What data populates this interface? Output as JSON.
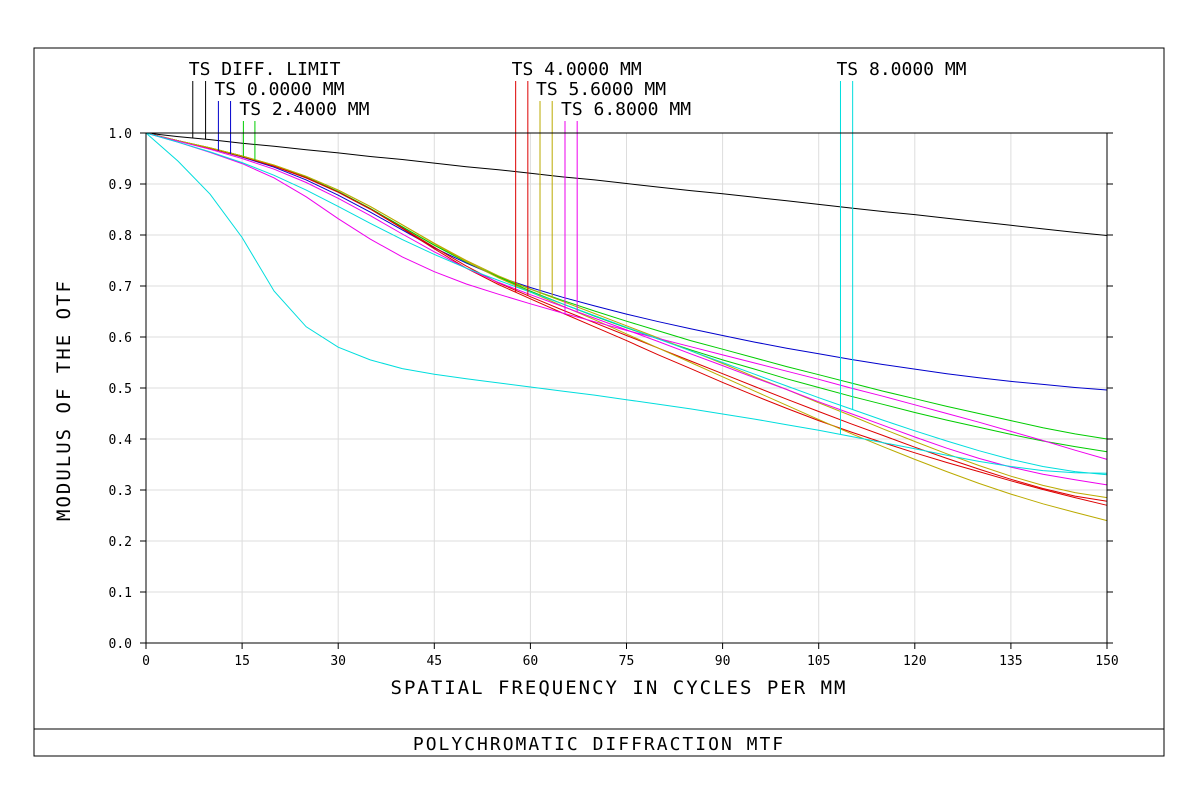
{
  "chart_data": {
    "type": "line",
    "title": "POLYCHROMATIC DIFFRACTION MTF",
    "xlabel": "SPATIAL FREQUENCY IN CYCLES PER MM",
    "ylabel": "MODULUS OF THE OTF",
    "xlim": [
      0,
      150
    ],
    "ylim": [
      0,
      1
    ],
    "x_ticks": [
      "0",
      "15",
      "30",
      "45",
      "60",
      "75",
      "90",
      "105",
      "120",
      "135",
      "150"
    ],
    "y_ticks": [
      "0.0",
      "0.1",
      "0.2",
      "0.3",
      "0.4",
      "0.5",
      "0.6",
      "0.7",
      "0.8",
      "0.9",
      "1.0"
    ],
    "grid": true,
    "legend": [
      {
        "label": "TS DIFF. LIMIT",
        "color": "#000000",
        "markers": [
          7.3,
          9.3
        ]
      },
      {
        "label": "TS 0.0000 MM",
        "color": "#0000cc",
        "markers": [
          11.3,
          13.2
        ]
      },
      {
        "label": "TS 2.4000 MM",
        "color": "#00cc00",
        "markers": [
          15.2,
          17.0
        ]
      },
      {
        "label": "TS 4.0000 MM",
        "color": "#dd0000",
        "markers": [
          57.7,
          59.6
        ]
      },
      {
        "label": "TS 5.6000 MM",
        "color": "#bbaa00",
        "markers": [
          61.5,
          63.4
        ]
      },
      {
        "label": "TS 6.8000 MM",
        "color": "#ee00ee",
        "markers": [
          65.4,
          67.3
        ]
      },
      {
        "label": "TS 8.0000 MM",
        "color": "#00dddd",
        "markers": [
          108.4,
          110.3
        ]
      }
    ],
    "x": [
      0,
      5,
      10,
      15,
      20,
      25,
      30,
      35,
      40,
      45,
      50,
      55,
      60,
      65,
      70,
      75,
      80,
      85,
      90,
      95,
      100,
      105,
      110,
      115,
      120,
      125,
      130,
      135,
      140,
      145,
      150
    ],
    "series": [
      {
        "label_ref": "TS DIFF. LIMIT",
        "color": "#000000",
        "values": [
          1.0,
          0.993,
          0.987,
          0.98,
          0.974,
          0.967,
          0.961,
          0.954,
          0.948,
          0.941,
          0.934,
          0.928,
          0.921,
          0.914,
          0.908,
          0.901,
          0.894,
          0.887,
          0.881,
          0.874,
          0.867,
          0.86,
          0.853,
          0.846,
          0.84,
          0.833,
          0.826,
          0.819,
          0.812,
          0.805,
          0.799
        ]
      },
      {
        "label_ref": "TS 0.0000 MM",
        "color": "#0000cc",
        "values": [
          1.0,
          0.985,
          0.97,
          0.953,
          0.933,
          0.908,
          0.878,
          0.845,
          0.81,
          0.775,
          0.745,
          0.718,
          0.697,
          0.678,
          0.661,
          0.645,
          0.63,
          0.616,
          0.603,
          0.59,
          0.578,
          0.567,
          0.556,
          0.546,
          0.537,
          0.528,
          0.52,
          0.513,
          0.507,
          0.501,
          0.496
        ]
      },
      {
        "label_ref": "TS 2.4000 MM",
        "color": "#00cc00",
        "values": [
          1.0,
          0.985,
          0.971,
          0.955,
          0.936,
          0.913,
          0.885,
          0.852,
          0.816,
          0.78,
          0.747,
          0.718,
          0.69,
          0.665,
          0.641,
          0.618,
          0.596,
          0.575,
          0.555,
          0.537,
          0.518,
          0.501,
          0.484,
          0.468,
          0.452,
          0.437,
          0.423,
          0.409,
          0.396,
          0.385,
          0.375
        ]
      },
      {
        "label_ref": "TS 2.4000 MM",
        "color": "#00cc00",
        "values": [
          1.0,
          0.985,
          0.971,
          0.955,
          0.936,
          0.913,
          0.885,
          0.852,
          0.816,
          0.78,
          0.747,
          0.718,
          0.694,
          0.672,
          0.651,
          0.631,
          0.612,
          0.593,
          0.576,
          0.559,
          0.542,
          0.526,
          0.51,
          0.494,
          0.479,
          0.464,
          0.45,
          0.436,
          0.422,
          0.41,
          0.4
        ]
      },
      {
        "label_ref": "TS 4.0000 MM",
        "color": "#dd0000",
        "values": [
          1.0,
          0.985,
          0.97,
          0.954,
          0.935,
          0.912,
          0.884,
          0.851,
          0.813,
          0.773,
          0.735,
          0.703,
          0.675,
          0.647,
          0.62,
          0.593,
          0.565,
          0.538,
          0.511,
          0.485,
          0.46,
          0.436,
          0.414,
          0.393,
          0.373,
          0.354,
          0.336,
          0.318,
          0.301,
          0.285,
          0.27
        ]
      },
      {
        "label_ref": "TS 4.0000 MM",
        "color": "#dd0000",
        "values": [
          1.0,
          0.985,
          0.97,
          0.954,
          0.935,
          0.912,
          0.884,
          0.851,
          0.814,
          0.776,
          0.739,
          0.706,
          0.679,
          0.653,
          0.628,
          0.603,
          0.578,
          0.553,
          0.528,
          0.503,
          0.478,
          0.454,
          0.43,
          0.407,
          0.384,
          0.362,
          0.341,
          0.321,
          0.303,
          0.288,
          0.278
        ]
      },
      {
        "label_ref": "TS 5.6000 MM",
        "color": "#bbaa00",
        "values": [
          1.0,
          0.985,
          0.971,
          0.955,
          0.937,
          0.915,
          0.888,
          0.856,
          0.82,
          0.783,
          0.748,
          0.716,
          0.688,
          0.661,
          0.634,
          0.606,
          0.578,
          0.55,
          0.522,
          0.494,
          0.466,
          0.438,
          0.411,
          0.385,
          0.36,
          0.336,
          0.313,
          0.292,
          0.273,
          0.256,
          0.24
        ]
      },
      {
        "label_ref": "TS 5.6000 MM",
        "color": "#bbaa00",
        "values": [
          1.0,
          0.985,
          0.971,
          0.955,
          0.937,
          0.915,
          0.888,
          0.856,
          0.82,
          0.784,
          0.75,
          0.72,
          0.694,
          0.67,
          0.646,
          0.622,
          0.598,
          0.573,
          0.548,
          0.522,
          0.497,
          0.471,
          0.446,
          0.42,
          0.395,
          0.371,
          0.348,
          0.327,
          0.309,
          0.295,
          0.285
        ]
      },
      {
        "label_ref": "TS 6.8000 MM",
        "color": "#ee00ee",
        "values": [
          1.0,
          0.982,
          0.962,
          0.94,
          0.912,
          0.875,
          0.832,
          0.792,
          0.757,
          0.728,
          0.704,
          0.684,
          0.665,
          0.647,
          0.63,
          0.613,
          0.597,
          0.581,
          0.565,
          0.549,
          0.533,
          0.517,
          0.5,
          0.484,
          0.467,
          0.45,
          0.433,
          0.415,
          0.397,
          0.378,
          0.36
        ]
      },
      {
        "label_ref": "TS 6.8000 MM",
        "color": "#ee00ee",
        "values": [
          1.0,
          0.984,
          0.968,
          0.95,
          0.929,
          0.903,
          0.872,
          0.838,
          0.802,
          0.767,
          0.735,
          0.707,
          0.683,
          0.66,
          0.637,
          0.614,
          0.591,
          0.567,
          0.544,
          0.52,
          0.497,
          0.473,
          0.45,
          0.427,
          0.404,
          0.382,
          0.362,
          0.345,
          0.331,
          0.32,
          0.31
        ]
      },
      {
        "label_ref": "TS 8.0000 MM",
        "color": "#00dddd",
        "values": [
          1.0,
          0.945,
          0.88,
          0.795,
          0.69,
          0.62,
          0.58,
          0.555,
          0.538,
          0.527,
          0.518,
          0.51,
          0.502,
          0.494,
          0.486,
          0.477,
          0.468,
          0.459,
          0.449,
          0.439,
          0.428,
          0.417,
          0.405,
          0.393,
          0.381,
          0.368,
          0.356,
          0.346,
          0.338,
          0.334,
          0.333
        ]
      },
      {
        "label_ref": "TS 8.0000 MM",
        "color": "#00dddd",
        "values": [
          1.0,
          0.982,
          0.963,
          0.942,
          0.917,
          0.888,
          0.856,
          0.823,
          0.791,
          0.762,
          0.735,
          0.711,
          0.688,
          0.665,
          0.642,
          0.619,
          0.596,
          0.573,
          0.55,
          0.527,
          0.504,
          0.481,
          0.459,
          0.437,
          0.416,
          0.396,
          0.377,
          0.36,
          0.346,
          0.336,
          0.33
        ]
      }
    ]
  }
}
